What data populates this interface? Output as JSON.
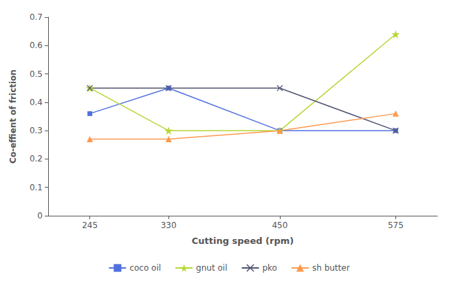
{
  "chart_data": {
    "type": "line",
    "xlabel": "Cutting speed (rpm)",
    "ylabel": "Co-effient of friction",
    "x": [
      245,
      330,
      450,
      575
    ],
    "series": [
      {
        "name": "coco oil",
        "marker": "square",
        "values": [
          0.36,
          0.45,
          0.3,
          0.3
        ]
      },
      {
        "name": "gnut oil",
        "marker": "star",
        "values": [
          0.45,
          0.3,
          0.3,
          0.64
        ]
      },
      {
        "name": "pko",
        "marker": "x",
        "values": [
          0.45,
          0.45,
          0.45,
          0.3
        ]
      },
      {
        "name": "sh butter",
        "marker": "triangle",
        "values": [
          0.27,
          0.27,
          0.3,
          0.36
        ]
      }
    ],
    "xlim": [
      200,
      620
    ],
    "xticks": [
      245,
      330,
      450,
      575
    ],
    "ylim": [
      0,
      0.7
    ],
    "yticks": [
      0,
      0.1,
      0.2,
      0.3,
      0.4,
      0.5,
      0.6,
      0.7
    ],
    "grid": false,
    "legend": "bottom"
  }
}
